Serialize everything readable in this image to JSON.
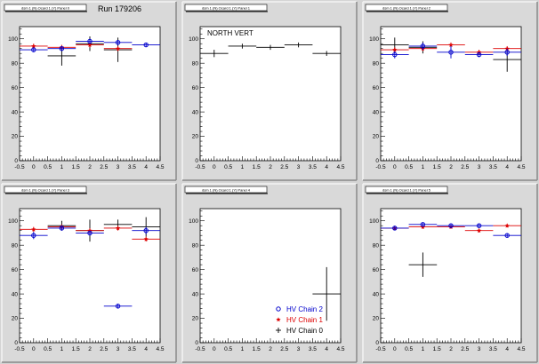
{
  "run_label": "Run 179206",
  "chart_data": [
    {
      "type": "scatter",
      "panel_title": "dsm 1 (N) Ocard 1 (Y) Panel 0",
      "annotation": "",
      "xlim": [
        -0.5,
        4.5
      ],
      "ylim": [
        0,
        110
      ],
      "xticks": [
        "-0.5",
        "0",
        "0.5",
        "1",
        "1.5",
        "2",
        "2.5",
        "3",
        "3.5",
        "4",
        "4.5"
      ],
      "yticks": [
        "0",
        "20",
        "40",
        "60",
        "80",
        "100"
      ],
      "series": [
        {
          "key": "chain0",
          "color": "#000000",
          "marker": "cross",
          "points": [
            {
              "x": 1,
              "y": 86,
              "xerr": 0.5,
              "yerr": 8
            },
            {
              "x": 2,
              "y": 96,
              "xerr": 0.5,
              "yerr": 6
            },
            {
              "x": 3,
              "y": 91,
              "xerr": 0.5,
              "yerr": 10
            }
          ]
        },
        {
          "key": "chain1",
          "color": "#dd0000",
          "marker": "star",
          "points": [
            {
              "x": 0,
              "y": 94,
              "xerr": 0.5,
              "yerr": 2
            },
            {
              "x": 1,
              "y": 93,
              "xerr": 0.5,
              "yerr": 2
            },
            {
              "x": 2,
              "y": 95,
              "xerr": 0.5,
              "yerr": 2
            },
            {
              "x": 3,
              "y": 92,
              "xerr": 0.5,
              "yerr": 2
            }
          ]
        },
        {
          "key": "chain2",
          "color": "#0000cc",
          "marker": "circle",
          "points": [
            {
              "x": 0,
              "y": 91,
              "xerr": 0.5,
              "yerr": 2
            },
            {
              "x": 1,
              "y": 92,
              "xerr": 0.5,
              "yerr": 2
            },
            {
              "x": 2,
              "y": 98,
              "xerr": 0.5,
              "yerr": 2
            },
            {
              "x": 3,
              "y": 97,
              "xerr": 0.5,
              "yerr": 2
            },
            {
              "x": 4,
              "y": 95,
              "xerr": 0.5,
              "yerr": 1.5
            }
          ]
        }
      ]
    },
    {
      "type": "scatter",
      "panel_title": "dsm 1 (N) Ocard 1 (Y) Panel 1",
      "annotation": "NORTH VERT",
      "xlim": [
        -0.5,
        4.5
      ],
      "ylim": [
        0,
        110
      ],
      "xticks": [
        "-0.5",
        "0",
        "0.5",
        "1",
        "1.5",
        "2",
        "2.5",
        "3",
        "3.5",
        "4",
        "4.5"
      ],
      "yticks": [
        "0",
        "20",
        "40",
        "60",
        "80",
        "100"
      ],
      "series": [
        {
          "key": "chain0",
          "color": "#000000",
          "marker": "cross",
          "points": [
            {
              "x": 0,
              "y": 88,
              "xerr": 0.5,
              "yerr": 3
            },
            {
              "x": 1,
              "y": 94,
              "xerr": 0.5,
              "yerr": 2
            },
            {
              "x": 2,
              "y": 93,
              "xerr": 0.5,
              "yerr": 2
            },
            {
              "x": 3,
              "y": 95,
              "xerr": 0.5,
              "yerr": 2
            },
            {
              "x": 4,
              "y": 88,
              "xerr": 0.5,
              "yerr": 2
            }
          ]
        }
      ]
    },
    {
      "type": "scatter",
      "panel_title": "dsm 1 (N) Ocard 1 (Y) Panel 2",
      "annotation": "",
      "xlim": [
        -0.5,
        4.5
      ],
      "ylim": [
        0,
        110
      ],
      "xticks": [
        "-0.5",
        "0",
        "0.5",
        "1",
        "1.5",
        "2",
        "2.5",
        "3",
        "3.5",
        "4",
        "4.5"
      ],
      "yticks": [
        "0",
        "20",
        "40",
        "60",
        "80",
        "100"
      ],
      "series": [
        {
          "key": "chain0",
          "color": "#000000",
          "marker": "cross",
          "points": [
            {
              "x": 0,
              "y": 95,
              "xerr": 0.5,
              "yerr": 6
            },
            {
              "x": 1,
              "y": 93,
              "xerr": 0.5,
              "yerr": 5
            },
            {
              "x": 4,
              "y": 83,
              "xerr": 0.5,
              "yerr": 10
            }
          ]
        },
        {
          "key": "chain1",
          "color": "#dd0000",
          "marker": "star",
          "points": [
            {
              "x": 0,
              "y": 91,
              "xerr": 0.5,
              "yerr": 2
            },
            {
              "x": 1,
              "y": 92,
              "xerr": 0.5,
              "yerr": 2
            },
            {
              "x": 2,
              "y": 95,
              "xerr": 0.5,
              "yerr": 2
            },
            {
              "x": 3,
              "y": 89,
              "xerr": 0.5,
              "yerr": 2
            },
            {
              "x": 4,
              "y": 92,
              "xerr": 0.5,
              "yerr": 2
            }
          ]
        },
        {
          "key": "chain2",
          "color": "#0000cc",
          "marker": "circle",
          "points": [
            {
              "x": 0,
              "y": 87,
              "xerr": 0.5,
              "yerr": 3
            },
            {
              "x": 1,
              "y": 94,
              "xerr": 0.5,
              "yerr": 3
            },
            {
              "x": 2,
              "y": 89,
              "xerr": 0.5,
              "yerr": 5
            },
            {
              "x": 3,
              "y": 87,
              "xerr": 0.5,
              "yerr": 2
            },
            {
              "x": 4,
              "y": 89,
              "xerr": 0.5,
              "yerr": 3
            }
          ]
        }
      ]
    },
    {
      "type": "scatter",
      "panel_title": "dsm 1 (N) Ocard 1 (Y) Panel 3",
      "annotation": "",
      "xlim": [
        -0.5,
        4.5
      ],
      "ylim": [
        0,
        110
      ],
      "xticks": [
        "-0.5",
        "0",
        "0.5",
        "1",
        "1.5",
        "2",
        "2.5",
        "3",
        "3.5",
        "4",
        "4.5"
      ],
      "yticks": [
        "0",
        "20",
        "40",
        "60",
        "80",
        "100"
      ],
      "series": [
        {
          "key": "chain0",
          "color": "#000000",
          "marker": "cross",
          "points": [
            {
              "x": 1,
              "y": 96,
              "xerr": 0.5,
              "yerr": 4
            },
            {
              "x": 2,
              "y": 92,
              "xerr": 0.5,
              "yerr": 9
            },
            {
              "x": 3,
              "y": 97,
              "xerr": 0.5,
              "yerr": 4
            },
            {
              "x": 4,
              "y": 95,
              "xerr": 0.5,
              "yerr": 8
            }
          ]
        },
        {
          "key": "chain1",
          "color": "#dd0000",
          "marker": "star",
          "points": [
            {
              "x": 0,
              "y": 93,
              "xerr": 0.5,
              "yerr": 2
            },
            {
              "x": 1,
              "y": 95,
              "xerr": 0.5,
              "yerr": 2
            },
            {
              "x": 2,
              "y": 92,
              "xerr": 0.5,
              "yerr": 2
            },
            {
              "x": 3,
              "y": 94,
              "xerr": 0.5,
              "yerr": 2
            },
            {
              "x": 4,
              "y": 85,
              "xerr": 0.5,
              "yerr": 2
            }
          ]
        },
        {
          "key": "chain2",
          "color": "#0000cc",
          "marker": "circle",
          "points": [
            {
              "x": 0,
              "y": 88,
              "xerr": 0.5,
              "yerr": 3
            },
            {
              "x": 1,
              "y": 94,
              "xerr": 0.5,
              "yerr": 2
            },
            {
              "x": 2,
              "y": 90,
              "xerr": 0.5,
              "yerr": 2
            },
            {
              "x": 3,
              "y": 30,
              "xerr": 0.5,
              "yerr": 2
            },
            {
              "x": 4,
              "y": 92,
              "xerr": 0.5,
              "yerr": 3
            }
          ]
        }
      ]
    },
    {
      "type": "scatter",
      "panel_title": "dsm 1 (N) Ocard 1 (Y) Panel 4",
      "annotation": "",
      "xlim": [
        -0.5,
        4.5
      ],
      "ylim": [
        0,
        110
      ],
      "xticks": [
        "-0.5",
        "0",
        "0.5",
        "1",
        "1.5",
        "2",
        "2.5",
        "3",
        "3.5",
        "4",
        "4.5"
      ],
      "yticks": [
        "0",
        "20",
        "40",
        "60",
        "80",
        "100"
      ],
      "legend": {
        "position": "bottom-right",
        "entries": [
          {
            "label": "HV Chain 2",
            "color": "#0000cc",
            "marker": "circle"
          },
          {
            "label": "HV Chain 1",
            "color": "#dd0000",
            "marker": "star"
          },
          {
            "label": "HV Chain 0",
            "color": "#000000",
            "marker": "cross"
          }
        ]
      },
      "series": [
        {
          "key": "chain0",
          "color": "#000000",
          "marker": "cross",
          "points": [
            {
              "x": 4,
              "y": 40,
              "xerr": 0.5,
              "yerr": 22
            }
          ]
        }
      ]
    },
    {
      "type": "scatter",
      "panel_title": "dsm 1 (N) Ocard 1 (Y) Panel 5",
      "annotation": "",
      "xlim": [
        -0.5,
        4.5
      ],
      "ylim": [
        0,
        110
      ],
      "xticks": [
        "-0.5",
        "0",
        "0.5",
        "1",
        "1.5",
        "2",
        "2.5",
        "3",
        "3.5",
        "4",
        "4.5"
      ],
      "yticks": [
        "0",
        "20",
        "40",
        "60",
        "80",
        "100"
      ],
      "series": [
        {
          "key": "chain0",
          "color": "#000000",
          "marker": "cross",
          "points": [
            {
              "x": 1,
              "y": 64,
              "xerr": 0.5,
              "yerr": 10
            }
          ]
        },
        {
          "key": "chain1",
          "color": "#dd0000",
          "marker": "star",
          "points": [
            {
              "x": 0,
              "y": 94,
              "xerr": 0.5,
              "yerr": 1.5
            },
            {
              "x": 1,
              "y": 95,
              "xerr": 0.5,
              "yerr": 1.5
            },
            {
              "x": 2,
              "y": 95,
              "xerr": 0.5,
              "yerr": 1.5
            },
            {
              "x": 3,
              "y": 92,
              "xerr": 0.5,
              "yerr": 1.5
            },
            {
              "x": 4,
              "y": 96,
              "xerr": 0.5,
              "yerr": 1.5
            }
          ]
        },
        {
          "key": "chain2",
          "color": "#0000cc",
          "marker": "circle",
          "points": [
            {
              "x": 0,
              "y": 94,
              "xerr": 0.5,
              "yerr": 1.5
            },
            {
              "x": 1,
              "y": 97,
              "xerr": 0.5,
              "yerr": 1.5
            },
            {
              "x": 2,
              "y": 96,
              "xerr": 0.5,
              "yerr": 1.5
            },
            {
              "x": 3,
              "y": 96,
              "xerr": 0.5,
              "yerr": 1.5
            },
            {
              "x": 4,
              "y": 88,
              "xerr": 0.5,
              "yerr": 1.5
            }
          ]
        }
      ]
    }
  ]
}
